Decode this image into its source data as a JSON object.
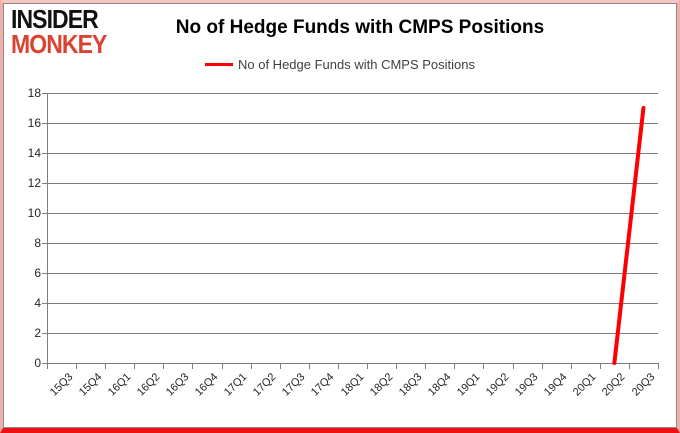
{
  "logo": {
    "line1": "INSIDER",
    "line2": "MONKEY",
    "line1_color": "#111111",
    "line2_color": "#d9432f"
  },
  "title": "No of Hedge Funds with CMPS Positions",
  "legend": {
    "label": "No of Hedge Funds with CMPS Positions",
    "color": "#ff0000",
    "position": "top"
  },
  "chart_data": {
    "type": "line",
    "title": "No of Hedge Funds with CMPS Positions",
    "categories": [
      "15Q3",
      "15Q4",
      "16Q1",
      "16Q2",
      "16Q3",
      "16Q4",
      "17Q1",
      "17Q2",
      "17Q3",
      "17Q4",
      "18Q1",
      "18Q2",
      "18Q3",
      "18Q4",
      "19Q1",
      "19Q2",
      "19Q3",
      "19Q4",
      "20Q1",
      "20Q2",
      "20Q3"
    ],
    "series": [
      {
        "name": "No of Hedge Funds with CMPS Positions",
        "color": "#ff0000",
        "values": [
          null,
          null,
          null,
          null,
          null,
          null,
          null,
          null,
          null,
          null,
          null,
          null,
          null,
          null,
          null,
          null,
          null,
          null,
          null,
          0,
          17
        ]
      }
    ],
    "xlabel": "",
    "ylabel": "",
    "ylim": [
      0,
      18
    ],
    "ytick_step": 2,
    "grid": "horizontal",
    "gridline_color": "#7f7f7f",
    "legend_position": "top"
  }
}
